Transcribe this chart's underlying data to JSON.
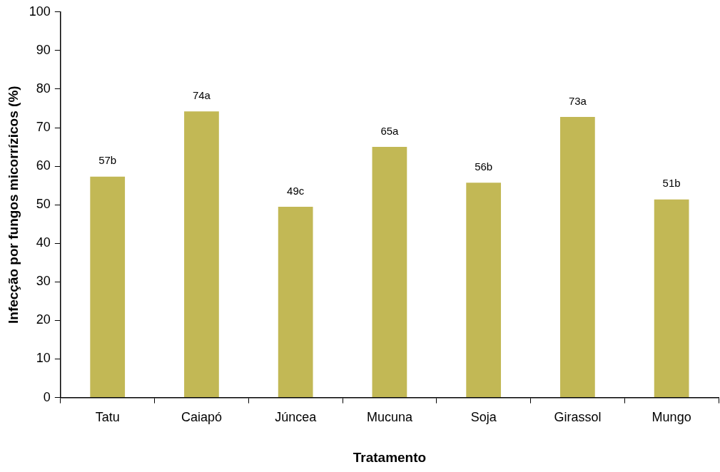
{
  "chart_data": {
    "type": "bar",
    "xlabel": "Tratamento",
    "ylabel": "Infecção por fungos micorrízicos (%)",
    "categories": [
      "Tatu",
      "Caiapó",
      "Júncea",
      "Mucuna",
      "Soja",
      "Girassol",
      "Mungo"
    ],
    "values": [
      57.3,
      74.2,
      49.5,
      65,
      55.7,
      72.8,
      51.4
    ],
    "value_labels": [
      "57b",
      "74a",
      "49c",
      "65a",
      "56b",
      "73a",
      "51b"
    ],
    "color": "#c2b855",
    "ylim": [
      0,
      100
    ],
    "yticks": [
      0,
      10,
      20,
      30,
      40,
      50,
      60,
      70,
      80,
      90,
      100
    ],
    "grid": false,
    "legend": false
  }
}
